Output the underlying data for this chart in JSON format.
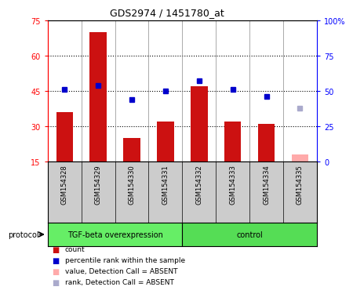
{
  "title": "GDS2974 / 1451780_at",
  "samples": [
    "GSM154328",
    "GSM154329",
    "GSM154330",
    "GSM154331",
    "GSM154332",
    "GSM154333",
    "GSM154334",
    "GSM154335"
  ],
  "bar_values": [
    36,
    70,
    25,
    32,
    47,
    32,
    31,
    null
  ],
  "bar_absent": [
    null,
    null,
    null,
    null,
    null,
    null,
    null,
    18
  ],
  "rank_values": [
    51,
    54,
    44,
    50,
    57,
    51,
    46,
    null
  ],
  "rank_absent": [
    null,
    null,
    null,
    null,
    null,
    null,
    null,
    38
  ],
  "left_yticks": [
    15,
    30,
    45,
    60,
    75
  ],
  "right_yticks": [
    0,
    25,
    50,
    75,
    100
  ],
  "left_ylim": [
    15,
    75
  ],
  "right_ylim": [
    0,
    100
  ],
  "bar_color": "#CC1111",
  "bar_absent_color": "#FFAAAA",
  "rank_color": "#0000CC",
  "rank_absent_color": "#AAAACC",
  "bg_plot": "#FFFFFF",
  "bg_sample": "#CCCCCC",
  "protocol_groups": [
    {
      "label": "TGF-beta overexpression",
      "start": 0,
      "end": 4,
      "color": "#66EE66"
    },
    {
      "label": "control",
      "start": 4,
      "end": 8,
      "color": "#55DD55"
    }
  ],
  "legend_items": [
    {
      "color": "#CC1111",
      "label": "count"
    },
    {
      "color": "#0000CC",
      "label": "percentile rank within the sample"
    },
    {
      "color": "#FFAAAA",
      "label": "value, Detection Call = ABSENT"
    },
    {
      "color": "#AAAACC",
      "label": "rank, Detection Call = ABSENT"
    }
  ],
  "protocol_label": "protocol"
}
